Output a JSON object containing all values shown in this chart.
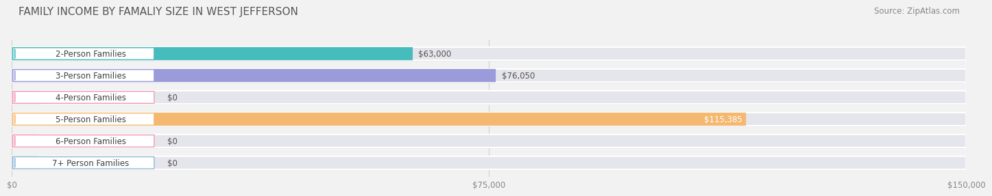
{
  "title": "FAMILY INCOME BY FAMALIY SIZE IN WEST JEFFERSON",
  "source": "Source: ZipAtlas.com",
  "categories": [
    "2-Person Families",
    "3-Person Families",
    "4-Person Families",
    "5-Person Families",
    "6-Person Families",
    "7+ Person Families"
  ],
  "values": [
    63000,
    76050,
    0,
    115385,
    0,
    0
  ],
  "bar_colors": [
    "#47bcbc",
    "#9b9bdb",
    "#f09ab5",
    "#f5b870",
    "#f09ab5",
    "#90b8d8"
  ],
  "value_labels": [
    "$63,000",
    "$76,050",
    "$0",
    "$115,385",
    "$0",
    "$0"
  ],
  "value_inside": [
    false,
    false,
    false,
    true,
    false,
    false
  ],
  "xlim": [
    0,
    150000
  ],
  "xtick_labels": [
    "$0",
    "$75,000",
    "$150,000"
  ],
  "background_color": "#f2f2f2",
  "bar_bg_color": "#e5e5ec",
  "bar_bg_shadow": "#d8d8e2",
  "title_fontsize": 11,
  "source_fontsize": 8.5,
  "label_fontsize": 8.5,
  "value_fontsize": 8.5
}
